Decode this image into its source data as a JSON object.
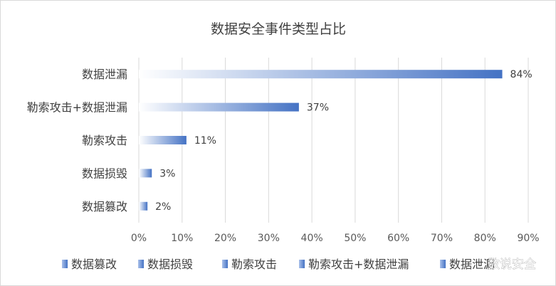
{
  "chart_data": {
    "type": "bar",
    "orientation": "horizontal",
    "title": "数据安全事件类型占比",
    "categories": [
      "数据泄漏",
      "勒索攻击+数据泄漏",
      "勒索攻击",
      "数据损毁",
      "数据篡改"
    ],
    "values": [
      84,
      37,
      11,
      3,
      2
    ],
    "data_labels": [
      "84%",
      "37%",
      "11%",
      "3%",
      "2%"
    ],
    "xlim": [
      0,
      90
    ],
    "x_ticks": [
      "0%",
      "10%",
      "20%",
      "30%",
      "40%",
      "50%",
      "60%",
      "70%",
      "80%",
      "90%"
    ],
    "grid": true,
    "legend": {
      "position": "bottom",
      "entries": [
        "数据篡改",
        "数据损毁",
        "勒索攻击",
        "勒索攻击+数据泄漏",
        "数据泄漏"
      ]
    },
    "colors": {
      "bar_end": "#4472c4",
      "bar_start": "#ffffff",
      "grid": "#d9d9d9"
    }
  },
  "watermark": "数说安全"
}
